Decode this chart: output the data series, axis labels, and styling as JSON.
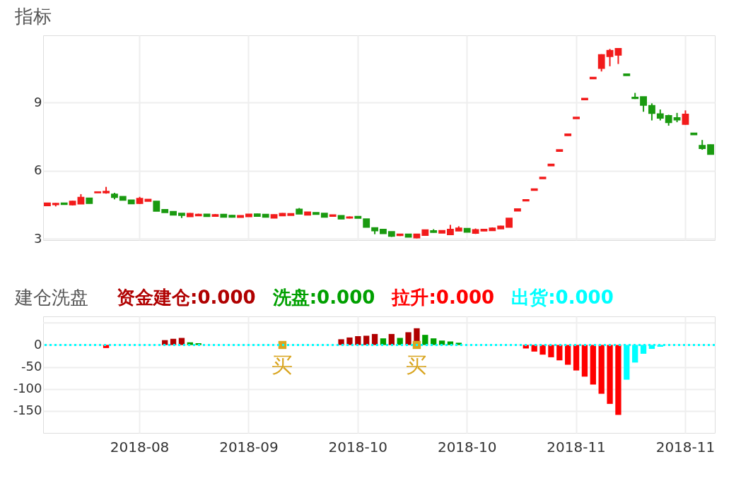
{
  "chart_data": [
    {
      "type": "candlestick",
      "title": "指标",
      "categories": [
        null,
        null,
        null,
        null,
        null,
        null,
        null,
        null,
        null,
        null,
        null,
        "2018-08",
        null,
        null,
        null,
        null,
        null,
        null,
        null,
        null,
        null,
        null,
        null,
        null,
        "2018-09",
        null,
        null,
        null,
        null,
        null,
        null,
        null,
        null,
        null,
        null,
        null,
        null,
        "2018-10",
        null,
        null,
        null,
        null,
        null,
        null,
        null,
        null,
        null,
        null,
        null,
        null,
        "2018-10",
        null,
        null,
        null,
        null,
        null,
        null,
        null,
        null,
        null,
        null,
        null,
        null,
        "2018-11",
        null,
        null,
        null,
        null,
        null,
        null,
        null,
        null,
        null,
        null,
        null,
        null,
        "2018-11",
        null,
        null,
        null
      ],
      "ohlc": [
        [
          4.46,
          4.58,
          4.44,
          4.58
        ],
        [
          4.51,
          4.58,
          4.43,
          4.56
        ],
        [
          4.58,
          4.58,
          4.52,
          4.52
        ],
        [
          4.5,
          4.68,
          4.47,
          4.66
        ],
        [
          4.54,
          4.97,
          4.54,
          4.83
        ],
        [
          4.8,
          4.81,
          4.56,
          4.56
        ],
        [
          5.03,
          5.07,
          5.03,
          5.07
        ],
        [
          5.03,
          5.29,
          4.99,
          5.09
        ],
        [
          4.97,
          5.03,
          4.74,
          4.83
        ],
        [
          4.87,
          4.87,
          4.7,
          4.7
        ],
        [
          4.71,
          4.71,
          4.55,
          4.55
        ],
        [
          4.56,
          4.85,
          4.54,
          4.78
        ],
        [
          4.66,
          4.74,
          4.66,
          4.74
        ],
        [
          4.66,
          4.66,
          4.22,
          4.22
        ],
        [
          4.29,
          4.3,
          4.16,
          4.16
        ],
        [
          4.21,
          4.22,
          4.05,
          4.05
        ],
        [
          4.13,
          4.13,
          3.92,
          4.04
        ],
        [
          3.98,
          4.14,
          3.98,
          4.12
        ],
        [
          4.02,
          4.11,
          4.02,
          4.08
        ],
        [
          4.09,
          4.09,
          3.99,
          3.99
        ],
        [
          4.0,
          4.1,
          3.98,
          4.07
        ],
        [
          4.08,
          4.1,
          3.96,
          3.96
        ],
        [
          4.04,
          4.05,
          3.94,
          3.96
        ],
        [
          3.95,
          4.03,
          3.95,
          4.03
        ],
        [
          3.98,
          4.09,
          3.98,
          4.09
        ],
        [
          4.1,
          4.11,
          4.0,
          4.0
        ],
        [
          4.08,
          4.08,
          3.96,
          3.96
        ],
        [
          3.92,
          4.08,
          3.91,
          4.07
        ],
        [
          4.02,
          4.14,
          4.02,
          4.12
        ],
        [
          4.04,
          4.11,
          4.04,
          4.11
        ],
        [
          4.31,
          4.36,
          4.1,
          4.1
        ],
        [
          4.05,
          4.19,
          4.04,
          4.18
        ],
        [
          4.16,
          4.16,
          4.08,
          4.08
        ],
        [
          4.13,
          4.13,
          3.96,
          3.96
        ],
        [
          4.0,
          4.06,
          4.0,
          4.06
        ],
        [
          4.03,
          4.03,
          3.88,
          3.88
        ],
        [
          3.92,
          3.99,
          3.9,
          3.97
        ],
        [
          3.99,
          3.99,
          3.91,
          3.91
        ],
        [
          3.88,
          3.88,
          3.52,
          3.52
        ],
        [
          3.49,
          3.5,
          3.21,
          3.36
        ],
        [
          3.42,
          3.42,
          3.24,
          3.24
        ],
        [
          3.32,
          3.32,
          3.09,
          3.12
        ],
        [
          3.15,
          3.23,
          3.13,
          3.21
        ],
        [
          3.21,
          3.22,
          3.08,
          3.08
        ],
        [
          3.05,
          3.21,
          3.03,
          3.21
        ],
        [
          3.16,
          3.4,
          3.16,
          3.4
        ],
        [
          3.36,
          3.43,
          3.28,
          3.29
        ],
        [
          3.26,
          3.37,
          3.26,
          3.37
        ],
        [
          3.19,
          3.62,
          3.18,
          3.42
        ],
        [
          3.35,
          3.56,
          3.35,
          3.48
        ],
        [
          3.46,
          3.46,
          3.3,
          3.3
        ],
        [
          3.25,
          3.46,
          3.22,
          3.41
        ],
        [
          3.35,
          3.44,
          3.35,
          3.42
        ],
        [
          3.37,
          3.51,
          3.37,
          3.48
        ],
        [
          3.45,
          3.58,
          3.44,
          3.56
        ],
        [
          3.52,
          3.91,
          3.52,
          3.91
        ],
        [
          4.23,
          4.32,
          4.23,
          4.32
        ],
        [
          4.67,
          4.73,
          4.67,
          4.73
        ],
        [
          5.14,
          5.2,
          5.14,
          5.2
        ],
        [
          5.65,
          5.71,
          5.65,
          5.71
        ],
        [
          6.22,
          6.29,
          6.22,
          6.29
        ],
        [
          6.85,
          6.92,
          6.85,
          6.92
        ],
        [
          7.54,
          7.61,
          7.54,
          7.61
        ],
        [
          8.29,
          8.35,
          8.29,
          8.35
        ],
        [
          9.12,
          9.18,
          9.12,
          9.18
        ],
        [
          10.04,
          10.1,
          10.04,
          10.1
        ],
        [
          10.5,
          11.12,
          10.36,
          11.1
        ],
        [
          11.02,
          11.35,
          10.59,
          11.28
        ],
        [
          11.08,
          11.37,
          10.69,
          11.37
        ],
        [
          10.25,
          10.25,
          10.18,
          10.18
        ],
        [
          9.23,
          9.42,
          9.15,
          9.17
        ],
        [
          9.25,
          9.25,
          8.59,
          8.88
        ],
        [
          8.86,
          8.96,
          8.21,
          8.52
        ],
        [
          8.5,
          8.69,
          8.21,
          8.31
        ],
        [
          8.42,
          8.46,
          7.98,
          8.12
        ],
        [
          8.33,
          8.54,
          8.13,
          8.23
        ],
        [
          8.04,
          8.65,
          8.02,
          8.48
        ],
        [
          7.65,
          7.65,
          7.58,
          7.58
        ],
        [
          7.11,
          7.35,
          6.92,
          6.98
        ],
        [
          7.14,
          7.15,
          6.72,
          6.72
        ]
      ],
      "colors": [
        "#f21b1b",
        "#f21b1b",
        "#1a9a10",
        "#f21b1b",
        "#f21b1b",
        "#1a9a10",
        "#f21b1b",
        "#f21b1b",
        "#1a9a10",
        "#1a9a10",
        "#1a9a10",
        "#f21b1b",
        "#f21b1b",
        "#1a9a10",
        "#1a9a10",
        "#1a9a10",
        "#1a9a10",
        "#f21b1b",
        "#f21b1b",
        "#1a9a10",
        "#f21b1b",
        "#1a9a10",
        "#1a9a10",
        "#f21b1b",
        "#f21b1b",
        "#1a9a10",
        "#1a9a10",
        "#f21b1b",
        "#f21b1b",
        "#f21b1b",
        "#1a9a10",
        "#f21b1b",
        "#1a9a10",
        "#1a9a10",
        "#f21b1b",
        "#1a9a10",
        "#f21b1b",
        "#1a9a10",
        "#1a9a10",
        "#1a9a10",
        "#1a9a10",
        "#1a9a10",
        "#f21b1b",
        "#1a9a10",
        "#f21b1b",
        "#f21b1b",
        "#1a9a10",
        "#f21b1b",
        "#f21b1b",
        "#f21b1b",
        "#1a9a10",
        "#f21b1b",
        "#f21b1b",
        "#f21b1b",
        "#f21b1b",
        "#f21b1b",
        "#f21b1b",
        "#f21b1b",
        "#f21b1b",
        "#f21b1b",
        "#f21b1b",
        "#f21b1b",
        "#f21b1b",
        "#f21b1b",
        "#f21b1b",
        "#f21b1b",
        "#f21b1b",
        "#f21b1b",
        "#f21b1b",
        "#1a9a10",
        "#1a9a10",
        "#1a9a10",
        "#1a9a10",
        "#1a9a10",
        "#1a9a10",
        "#1a9a10",
        "#f21b1b",
        "#1a9a10",
        "#1a9a10",
        "#1a9a10"
      ],
      "ylim": [
        2.95,
        11.95
      ],
      "yticks": [
        3,
        6,
        9
      ],
      "grid": true,
      "tick_labels": "y"
    },
    {
      "type": "bar",
      "title": "建仓洗盘",
      "categories": [
        null,
        null,
        null,
        null,
        null,
        null,
        null,
        null,
        null,
        null,
        null,
        "2018-08",
        null,
        null,
        null,
        null,
        null,
        null,
        null,
        null,
        null,
        null,
        null,
        null,
        "2018-09",
        null,
        null,
        null,
        null,
        null,
        null,
        null,
        null,
        null,
        null,
        null,
        null,
        "2018-10",
        null,
        null,
        null,
        null,
        null,
        null,
        null,
        null,
        null,
        null,
        null,
        null,
        "2018-10",
        null,
        null,
        null,
        null,
        null,
        null,
        null,
        null,
        null,
        null,
        null,
        null,
        "2018-11",
        null,
        null,
        null,
        null,
        null,
        null,
        null,
        null,
        null,
        null,
        null,
        null,
        "2018-11",
        null,
        null,
        null
      ],
      "series": [
        {
          "color": "#b00000",
          "values": [
            null,
            null,
            null,
            null,
            null,
            null,
            null,
            null,
            null,
            null,
            null,
            null,
            null,
            null,
            11,
            14,
            16,
            null,
            null,
            null,
            null,
            null,
            null,
            null,
            null,
            null,
            null,
            null,
            null,
            null,
            null,
            null,
            null,
            null,
            null,
            13,
            17,
            20,
            21,
            25,
            null,
            25,
            null,
            29,
            38,
            null,
            null,
            null,
            null,
            null,
            null,
            null,
            null,
            null,
            null,
            null,
            null,
            null,
            null,
            null,
            null,
            null,
            null,
            null,
            null,
            null,
            null,
            null,
            null,
            null,
            null,
            null,
            null,
            null,
            null,
            null,
            null,
            null,
            null,
            null
          ]
        },
        {
          "color": "#00a000",
          "values": [
            null,
            null,
            null,
            null,
            null,
            null,
            null,
            null,
            null,
            null,
            null,
            null,
            null,
            null,
            null,
            null,
            null,
            6,
            4,
            null,
            null,
            null,
            null,
            null,
            null,
            null,
            null,
            null,
            null,
            null,
            null,
            null,
            null,
            null,
            null,
            null,
            null,
            null,
            null,
            null,
            15,
            null,
            16,
            null,
            null,
            23,
            15,
            10,
            8,
            5,
            null,
            null,
            null,
            null,
            null,
            null,
            null,
            null,
            null,
            null,
            null,
            null,
            null,
            null,
            null,
            null,
            null,
            null,
            null,
            null,
            null,
            null,
            null,
            null,
            null,
            null,
            null,
            null,
            null,
            null
          ]
        },
        {
          "color": "#ff0000",
          "values": [
            null,
            null,
            null,
            null,
            null,
            null,
            null,
            -7,
            null,
            null,
            null,
            null,
            null,
            null,
            null,
            null,
            null,
            null,
            null,
            null,
            null,
            null,
            null,
            null,
            null,
            null,
            null,
            null,
            null,
            null,
            null,
            null,
            null,
            null,
            null,
            null,
            null,
            null,
            null,
            null,
            null,
            null,
            null,
            null,
            null,
            null,
            null,
            null,
            null,
            null,
            null,
            null,
            null,
            null,
            null,
            null,
            null,
            -8,
            -15,
            -22,
            -28,
            -35,
            -45,
            -58,
            -72,
            -90,
            -111,
            -134,
            -159,
            null,
            null,
            null,
            null,
            null,
            null,
            null,
            null,
            null,
            null,
            null
          ]
        },
        {
          "color": "#00ffff",
          "values": [
            null,
            null,
            null,
            null,
            null,
            null,
            null,
            null,
            null,
            null,
            null,
            null,
            null,
            null,
            null,
            null,
            null,
            null,
            null,
            null,
            null,
            null,
            null,
            null,
            null,
            null,
            null,
            null,
            null,
            null,
            null,
            null,
            null,
            null,
            null,
            null,
            null,
            null,
            null,
            null,
            null,
            null,
            null,
            null,
            null,
            null,
            null,
            null,
            null,
            null,
            null,
            null,
            null,
            null,
            null,
            null,
            null,
            null,
            null,
            null,
            null,
            null,
            null,
            null,
            null,
            null,
            null,
            null,
            null,
            -79,
            -40,
            -20,
            -9,
            -4,
            null,
            null,
            null,
            null,
            null,
            null
          ]
        },
        {
          "type": "scatter",
          "marker": "square",
          "color": "#d9a520",
          "values": [
            null,
            null,
            null,
            null,
            null,
            null,
            null,
            null,
            null,
            null,
            null,
            null,
            null,
            null,
            null,
            null,
            null,
            null,
            null,
            null,
            null,
            null,
            null,
            null,
            null,
            null,
            null,
            null,
            0,
            null,
            null,
            null,
            null,
            null,
            null,
            null,
            null,
            null,
            null,
            null,
            null,
            null,
            null,
            null,
            0,
            null,
            null,
            null,
            null,
            null,
            null,
            null,
            null,
            null,
            null,
            null,
            null,
            null,
            null,
            null,
            null,
            null,
            null,
            null,
            null,
            null,
            null,
            null,
            null,
            null,
            null,
            null,
            null,
            null,
            null,
            null,
            null,
            null,
            null,
            null
          ],
          "value_labels": [
            null,
            null,
            null,
            null,
            null,
            null,
            null,
            null,
            null,
            null,
            null,
            null,
            null,
            null,
            null,
            null,
            null,
            null,
            null,
            null,
            null,
            null,
            null,
            null,
            null,
            null,
            null,
            null,
            "买",
            null,
            null,
            null,
            null,
            null,
            null,
            null,
            null,
            null,
            null,
            null,
            null,
            null,
            null,
            null,
            "买",
            null,
            null,
            null,
            null,
            null,
            null,
            null,
            null,
            null,
            null,
            null,
            null,
            null,
            null,
            null,
            null,
            null,
            null,
            null,
            null,
            null,
            null,
            null,
            null,
            null,
            null,
            null,
            null,
            null,
            null,
            null,
            null,
            null,
            null,
            null
          ]
        }
      ],
      "ylim": [
        -200,
        65
      ],
      "yticks": [
        {
          "value": 50,
          "label": null
        },
        0,
        -50,
        -100,
        -150
      ],
      "grid": true,
      "ref_lines": [
        {
          "axis": "y",
          "value": 0,
          "color": "#00ffff",
          "line_style": "dotted"
        }
      ],
      "annotations": [
        "资金建仓:0.000",
        "洗盘:0.000",
        "拉升:0.000",
        "出货:0.000"
      ]
    }
  ]
}
